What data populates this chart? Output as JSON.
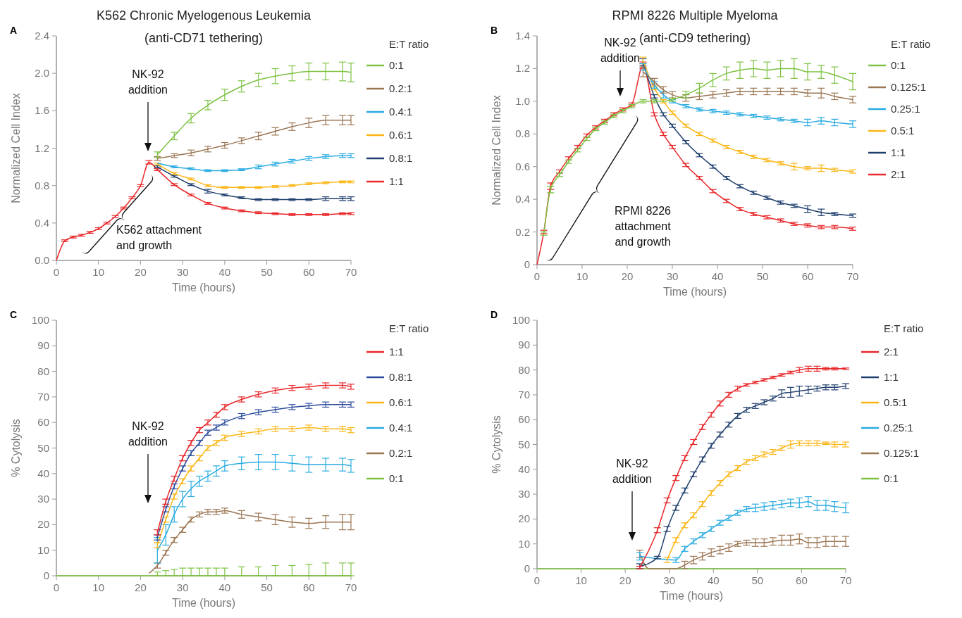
{
  "chart_data": [
    {
      "type": "line",
      "title": "K562 Chronic Myelogenous Leukemia",
      "subtitle": "(anti-CD71 tethering)",
      "xlabel": "Time (hours)",
      "ylabel": "Normalized Cell Index",
      "legend_title": "E:T ratio",
      "legend": "right",
      "line_style": "solid",
      "annotations": [
        "A",
        "NK-92\naddition",
        "K562 attachment\nand growth"
      ],
      "xlim": [
        0,
        70
      ],
      "xticks": [
        0,
        10,
        20,
        30,
        40,
        50,
        60,
        70
      ],
      "ylim": [
        0,
        2.4
      ],
      "yticks": [
        {
          "value": 0,
          "label": "0.0"
        },
        0.4,
        0.8,
        1.2,
        1.6,
        {
          "value": 2,
          "label": "2.0"
        },
        2.4
      ],
      "x": [
        0,
        2,
        4,
        6,
        8,
        10,
        12,
        14,
        16,
        18,
        20,
        22,
        24,
        28,
        32,
        36,
        40,
        44,
        48,
        52,
        56,
        60,
        64,
        68,
        70
      ],
      "series": [
        {
          "name": "0:1",
          "color": "#7dc242",
          "values": [
            null,
            null,
            null,
            null,
            null,
            null,
            null,
            null,
            null,
            null,
            null,
            null,
            1.13,
            1.33,
            1.52,
            1.66,
            1.77,
            1.86,
            1.93,
            1.97,
            2.0,
            2.02,
            2.02,
            2.02,
            2.01
          ],
          "errors": [
            null,
            null,
            null,
            null,
            null,
            null,
            null,
            null,
            null,
            null,
            null,
            null,
            0.03,
            0.04,
            0.05,
            0.05,
            0.06,
            0.06,
            0.07,
            0.08,
            0.08,
            0.09,
            0.09,
            0.1,
            0.1
          ]
        },
        {
          "name": "0.2:1",
          "color": "#9b7653",
          "values": [
            null,
            null,
            null,
            null,
            null,
            null,
            null,
            null,
            null,
            null,
            null,
            null,
            1.09,
            1.12,
            1.15,
            1.19,
            1.23,
            1.28,
            1.33,
            1.38,
            1.43,
            1.47,
            1.5,
            1.5,
            1.5
          ],
          "errors": [
            null,
            null,
            null,
            null,
            null,
            null,
            null,
            null,
            null,
            null,
            null,
            null,
            0.02,
            0.02,
            0.03,
            0.03,
            0.03,
            0.03,
            0.04,
            0.04,
            0.04,
            0.05,
            0.05,
            0.05,
            0.05
          ]
        },
        {
          "name": "0.4:1",
          "color": "#29abe2",
          "values": [
            null,
            null,
            null,
            null,
            null,
            null,
            null,
            null,
            null,
            null,
            null,
            null,
            1.04,
            1.0,
            0.98,
            0.96,
            0.96,
            0.97,
            1.0,
            1.03,
            1.06,
            1.09,
            1.11,
            1.12,
            1.12
          ],
          "errors": [
            null,
            null,
            null,
            null,
            null,
            null,
            null,
            null,
            null,
            null,
            null,
            null,
            null,
            0.01,
            0.01,
            0.01,
            0.01,
            0.01,
            0.02,
            0.02,
            0.02,
            0.02,
            0.02,
            0.02,
            0.02
          ]
        },
        {
          "name": "0.6:1",
          "color": "#fbb616",
          "values": [
            null,
            null,
            null,
            null,
            null,
            null,
            null,
            null,
            null,
            null,
            null,
            null,
            1.03,
            0.93,
            0.87,
            0.8,
            0.78,
            0.78,
            0.78,
            0.79,
            0.8,
            0.82,
            0.83,
            0.84,
            0.84
          ],
          "errors": [
            null,
            null,
            null,
            null,
            null,
            null,
            null,
            null,
            null,
            null,
            null,
            null,
            0.01,
            0.01,
            0.01,
            0.01,
            0.01,
            0.01,
            0.01,
            0.01,
            0.01,
            0.01,
            0.01,
            0.01,
            0.01
          ]
        },
        {
          "name": "0.8:1",
          "color": "#1f3f6e",
          "values": [
            null,
            null,
            null,
            null,
            null,
            null,
            null,
            null,
            null,
            null,
            null,
            null,
            1.0,
            0.9,
            0.81,
            0.74,
            0.7,
            0.67,
            0.65,
            0.65,
            0.65,
            0.65,
            0.66,
            0.66,
            0.66
          ],
          "errors": [
            null,
            null,
            null,
            null,
            null,
            null,
            null,
            null,
            null,
            null,
            null,
            null,
            0.01,
            0.01,
            0.01,
            0.02,
            0.01,
            0.01,
            0.01,
            0.01,
            0.01,
            0.01,
            0.02,
            0.02,
            0.02
          ]
        },
        {
          "name": "1:1",
          "color": "#e8282b",
          "values": [
            0,
            0.21,
            0.25,
            0.27,
            0.3,
            0.34,
            0.4,
            0.47,
            0.56,
            0.67,
            0.8,
            1.05,
            0.97,
            0.81,
            0.7,
            0.61,
            0.56,
            0.53,
            0.51,
            0.5,
            0.49,
            0.49,
            0.49,
            0.5,
            0.5
          ],
          "errors": [
            null,
            0.01,
            0.01,
            0.01,
            0.01,
            0.01,
            0.01,
            0.01,
            0.01,
            0.01,
            0.01,
            0.02,
            0.01,
            0.01,
            0.01,
            0.01,
            0.01,
            0.01,
            0.01,
            0.01,
            0.01,
            0.01,
            0.01,
            0.01,
            0.01
          ]
        }
      ]
    },
    {
      "type": "line",
      "title": "RPMI 8226 Multiple Myeloma",
      "subtitle": "(anti-CD9 tethering)",
      "xlabel": "Time (hours)",
      "ylabel": "Normalized Cell Index",
      "legend_title": "E:T ratio",
      "legend": "right",
      "line_style": "solid",
      "annotations": [
        "B",
        "NK-92\naddition",
        "RPMI 8226\nattachment\nand growth"
      ],
      "xlim": [
        0,
        70
      ],
      "xticks": [
        0,
        10,
        20,
        30,
        40,
        50,
        60,
        70
      ],
      "ylim": [
        0,
        1.4
      ],
      "yticks": [
        0,
        0.2,
        0.4,
        0.6,
        0.8,
        {
          "value": 1,
          "label": "1.0"
        },
        1.2,
        1.4
      ],
      "x": [
        0,
        1.5,
        3,
        5,
        7,
        9,
        11,
        13,
        15,
        17,
        19,
        21,
        23.5,
        26,
        28,
        30,
        33,
        36,
        39,
        42,
        45,
        48,
        51,
        54,
        57,
        60,
        63,
        66,
        70
      ],
      "series": [
        {
          "name": "0:1",
          "color": "#7dc242",
          "values": [
            null,
            0.19,
            0.46,
            0.55,
            0.63,
            0.7,
            0.77,
            0.83,
            0.87,
            0.91,
            0.94,
            0.97,
            1.0,
            1.0,
            1.0,
            1.01,
            1.04,
            1.08,
            1.13,
            1.17,
            1.19,
            1.2,
            1.19,
            1.2,
            1.2,
            1.18,
            1.18,
            1.16,
            1.12
          ],
          "errors": [
            null,
            0.01,
            0.02,
            0.01,
            0.01,
            0.01,
            0.01,
            0.01,
            0.01,
            0.01,
            0.01,
            0.01,
            0.01,
            0.01,
            null,
            0.01,
            0.02,
            0.03,
            0.04,
            0.04,
            0.05,
            0.05,
            0.05,
            0.05,
            0.06,
            0.05,
            0.04,
            0.05,
            0.05
          ]
        },
        {
          "name": "0.125:1",
          "color": "#9b7653",
          "values": [
            null,
            null,
            null,
            null,
            null,
            null,
            null,
            null,
            null,
            null,
            null,
            null,
            1.18,
            1.12,
            1.07,
            1.04,
            1.02,
            1.03,
            1.04,
            1.05,
            1.06,
            1.06,
            1.06,
            1.06,
            1.06,
            1.05,
            1.05,
            1.03,
            1.01
          ],
          "errors": [
            null,
            null,
            null,
            null,
            null,
            null,
            null,
            null,
            null,
            null,
            null,
            null,
            0.03,
            0.02,
            0.02,
            0.02,
            0.02,
            0.02,
            0.02,
            0.02,
            0.02,
            0.02,
            0.02,
            0.02,
            0.02,
            0.02,
            0.03,
            0.02,
            0.02
          ]
        },
        {
          "name": "0.25:1",
          "color": "#29abe2",
          "values": [
            null,
            null,
            null,
            null,
            null,
            null,
            null,
            null,
            null,
            null,
            null,
            null,
            1.21,
            1.1,
            1.04,
            1.0,
            0.97,
            0.95,
            0.94,
            0.93,
            0.92,
            0.91,
            0.9,
            0.89,
            0.88,
            0.87,
            0.88,
            0.87,
            0.86
          ],
          "errors": [
            null,
            null,
            null,
            null,
            null,
            null,
            null,
            null,
            null,
            null,
            null,
            null,
            0.02,
            0.02,
            0.02,
            0.01,
            0.01,
            0.01,
            0.01,
            0.01,
            0.01,
            0.01,
            0.01,
            0.01,
            0.01,
            0.02,
            0.02,
            0.02,
            0.02
          ]
        },
        {
          "name": "0.5:1",
          "color": "#fbb616",
          "values": [
            null,
            null,
            null,
            null,
            null,
            null,
            null,
            null,
            null,
            null,
            null,
            null,
            1.25,
            1.08,
            1.0,
            0.93,
            0.85,
            0.8,
            0.76,
            0.72,
            0.69,
            0.66,
            0.64,
            0.62,
            0.6,
            0.59,
            0.59,
            0.58,
            0.57
          ],
          "errors": [
            null,
            null,
            null,
            null,
            null,
            null,
            null,
            null,
            null,
            null,
            null,
            null,
            0.02,
            0.01,
            0.01,
            0.01,
            0.01,
            0.01,
            0.01,
            0.01,
            0.01,
            0.01,
            0.01,
            0.01,
            0.02,
            0.01,
            0.02,
            0.01,
            0.01
          ]
        },
        {
          "name": "1:1",
          "color": "#1f3f6e",
          "values": [
            null,
            null,
            null,
            null,
            null,
            null,
            null,
            null,
            null,
            null,
            null,
            null,
            1.24,
            1.03,
            0.92,
            0.85,
            0.75,
            0.67,
            0.6,
            0.53,
            0.48,
            0.44,
            0.41,
            0.38,
            0.36,
            0.34,
            0.32,
            0.31,
            0.3
          ],
          "errors": [
            null,
            null,
            null,
            null,
            null,
            null,
            null,
            null,
            null,
            null,
            null,
            null,
            0.02,
            0.01,
            0.01,
            0.01,
            0.01,
            0.01,
            0.01,
            0.01,
            0.01,
            0.01,
            0.01,
            0.01,
            0.01,
            0.02,
            0.02,
            0.01,
            0.01
          ]
        },
        {
          "name": "2:1",
          "color": "#e8282b",
          "values": [
            0,
            0.2,
            0.48,
            0.57,
            0.65,
            0.72,
            0.79,
            0.84,
            0.88,
            0.92,
            0.95,
            0.98,
            1.22,
            0.92,
            0.8,
            0.72,
            0.61,
            0.53,
            0.45,
            0.39,
            0.34,
            0.31,
            0.29,
            0.27,
            0.25,
            0.24,
            0.23,
            0.23,
            0.22
          ],
          "errors": [
            null,
            0.01,
            0.02,
            0.01,
            0.01,
            0.01,
            0.01,
            0.01,
            0.01,
            0.01,
            0.01,
            0.01,
            0.02,
            0.01,
            0.01,
            0.01,
            0.01,
            0.01,
            0.01,
            0.01,
            0.01,
            0.01,
            0.01,
            0.01,
            0.01,
            0.01,
            0.01,
            0.01,
            0.01
          ]
        }
      ]
    },
    {
      "type": "line",
      "xlabel": "Time (hours)",
      "ylabel": "% Cytolysis",
      "legend_title": "E:T ratio",
      "legend": "right",
      "line_style": "solid",
      "annotations": [
        "C",
        "NK-92\naddition"
      ],
      "xlim": [
        0,
        70
      ],
      "xticks": [
        0,
        10,
        20,
        30,
        40,
        50,
        60,
        70
      ],
      "ylim": [
        0,
        100
      ],
      "yticks": [
        0,
        10,
        20,
        30,
        40,
        50,
        60,
        70,
        80,
        90,
        100
      ],
      "x": [
        0,
        10,
        20,
        22,
        24,
        26,
        28,
        30,
        32,
        34,
        36,
        38,
        40,
        44,
        48,
        52,
        56,
        60,
        64,
        68,
        70
      ],
      "series": [
        {
          "name": "1:1",
          "color": "#e8282b",
          "values": [
            null,
            null,
            null,
            null,
            17,
            29,
            38,
            46,
            52,
            57,
            60,
            63,
            66,
            69,
            71,
            72.5,
            73.5,
            74,
            74.5,
            74.5,
            74
          ],
          "errors": [
            null,
            null,
            null,
            null,
            1,
            1,
            1,
            1,
            1,
            1,
            1,
            1,
            1,
            1,
            1,
            1,
            1,
            1,
            1,
            1,
            1
          ]
        },
        {
          "name": "0.8:1",
          "color": "#2b4b9b",
          "values": [
            null,
            null,
            null,
            null,
            15,
            26,
            35,
            42,
            48,
            52,
            56,
            58,
            60,
            62.5,
            64,
            65,
            66,
            66.5,
            67,
            67,
            67
          ],
          "errors": [
            null,
            null,
            null,
            null,
            1,
            1,
            1,
            1,
            1,
            1,
            1,
            1,
            1,
            1,
            1,
            1,
            1,
            1,
            1,
            1,
            1
          ]
        },
        {
          "name": "0.6:1",
          "color": "#fbb616",
          "values": [
            null,
            null,
            null,
            null,
            12,
            22,
            31,
            37,
            42,
            46,
            50,
            52,
            54,
            55.5,
            56.5,
            57.5,
            57.5,
            58,
            57.5,
            57.5,
            57
          ],
          "errors": [
            null,
            null,
            null,
            null,
            1,
            1,
            1,
            1,
            1,
            1,
            1,
            1,
            1,
            1,
            1,
            1,
            1,
            1,
            1,
            1,
            1
          ]
        },
        {
          "name": "0.4:1",
          "color": "#29abe2",
          "values": [
            null,
            null,
            null,
            null,
            10,
            16,
            24,
            30,
            34,
            37,
            39,
            41,
            43,
            44,
            44.5,
            44.5,
            44,
            43.5,
            43.5,
            43.5,
            43
          ],
          "errors": [
            null,
            null,
            null,
            null,
            5,
            4,
            3,
            3,
            3,
            2,
            2,
            2,
            2,
            2.5,
            3,
            3,
            3,
            3,
            2.5,
            2.5,
            2.5
          ]
        },
        {
          "name": "0.2:1",
          "color": "#9b7653",
          "values": [
            null,
            null,
            null,
            1,
            4,
            9,
            14,
            18,
            22,
            24,
            25,
            25,
            25.5,
            24,
            23,
            22,
            21,
            20.5,
            21,
            21,
            21
          ],
          "errors": [
            null,
            null,
            null,
            null,
            1,
            1,
            1,
            1,
            1,
            1,
            1,
            1,
            1,
            1.5,
            1.5,
            2,
            2,
            2,
            2.5,
            3,
            3
          ]
        },
        {
          "name": "0:1",
          "color": "#7dc242",
          "values": [
            0,
            0,
            0,
            0,
            0,
            0,
            0,
            0,
            0,
            0,
            0,
            0,
            0,
            0,
            0,
            0,
            0,
            0,
            0,
            0,
            0
          ],
          "errors": [
            null,
            null,
            null,
            null,
            [
              0,
              1.5
            ],
            [
              0,
              2
            ],
            [
              0,
              2.5
            ],
            [
              0,
              3
            ],
            [
              0,
              3
            ],
            [
              0,
              3
            ],
            [
              0,
              3
            ],
            [
              0,
              3
            ],
            [
              0,
              3
            ],
            [
              0,
              3.5
            ],
            [
              0,
              3.5
            ],
            [
              0,
              4
            ],
            [
              0,
              4
            ],
            [
              0,
              4.5
            ],
            [
              0,
              5
            ],
            [
              0,
              5
            ],
            [
              0,
              5
            ]
          ]
        }
      ]
    },
    {
      "type": "line",
      "xlabel": "Time (hours)",
      "ylabel": "% Cytolysis",
      "legend_title": "E:T ratio",
      "legend": "right",
      "line_style": "solid",
      "annotations": [
        "D",
        "NK-92\naddition"
      ],
      "xlim": [
        0,
        70
      ],
      "xticks": [
        0,
        10,
        20,
        30,
        40,
        50,
        60,
        70
      ],
      "ylim": [
        0,
        100
      ],
      "yticks": [
        0,
        10,
        20,
        30,
        40,
        50,
        60,
        70,
        80,
        90,
        100
      ],
      "x": [
        0,
        10,
        20,
        23.3,
        25.4,
        27.3,
        29.5,
        31.5,
        33.5,
        35.5,
        37.5,
        39.5,
        41.5,
        43.5,
        45.5,
        47.5,
        49.5,
        51.5,
        53.5,
        55.5,
        57.5,
        59.5,
        61.5,
        63.5,
        65.5,
        67.5,
        70
      ],
      "series": [
        {
          "name": "2:1",
          "color": "#e8282b",
          "values": [
            null,
            null,
            null,
            0.5,
            null,
            15.5,
            27.5,
            36.5,
            44.5,
            51,
            57,
            62,
            66.5,
            70,
            72.5,
            74,
            75,
            76,
            77,
            78,
            79,
            80,
            80.5,
            80.5,
            80.5,
            80.5,
            80.5
          ],
          "errors": [
            null,
            null,
            null,
            0.5,
            null,
            1,
            1,
            1,
            1,
            1,
            1,
            1,
            1,
            1,
            1,
            0.5,
            0.5,
            0.5,
            0.5,
            0.5,
            0.5,
            1,
            1,
            1,
            0.5,
            0.5,
            0.3
          ]
        },
        {
          "name": "1:1",
          "color": "#1f3f6e",
          "values": [
            null,
            null,
            null,
            1,
            null,
            4.5,
            16,
            24.5,
            31.5,
            38,
            44,
            49.5,
            54,
            58,
            61.5,
            64,
            65.5,
            67,
            68.5,
            70.5,
            71,
            71.5,
            72,
            72.5,
            73,
            73,
            73.5
          ],
          "errors": [
            null,
            null,
            null,
            1,
            null,
            0.5,
            1,
            1,
            1,
            1,
            1,
            1,
            1,
            1,
            1,
            1,
            1,
            1,
            1,
            1.5,
            2,
            2,
            1.5,
            1,
            1,
            1,
            1
          ]
        },
        {
          "name": "0.5:1",
          "color": "#fbb616",
          "values": [
            null,
            null,
            null,
            null,
            null,
            null,
            3.5,
            11.5,
            17.5,
            21.5,
            26,
            30.5,
            34.5,
            38,
            40.5,
            43,
            44.5,
            46,
            47,
            48.5,
            50,
            50.5,
            50.5,
            50.5,
            50.5,
            50,
            50
          ],
          "errors": [
            null,
            null,
            null,
            null,
            null,
            null,
            1,
            1,
            1,
            1,
            1,
            1,
            1,
            1,
            1,
            1,
            1,
            1,
            1,
            1,
            1.5,
            1,
            1,
            1,
            0.5,
            1,
            1
          ]
        },
        {
          "name": "0.25:1",
          "color": "#29abe2",
          "values": [
            null,
            null,
            null,
            5,
            null,
            null,
            null,
            3.5,
            8,
            11,
            13.5,
            16,
            18.5,
            20.5,
            22.5,
            24,
            24.5,
            25,
            25.5,
            26,
            26.5,
            26.5,
            27,
            25.5,
            25.5,
            25,
            24.5
          ],
          "errors": [
            null,
            null,
            null,
            1.5,
            null,
            null,
            null,
            1,
            1,
            1,
            1,
            1,
            1,
            1,
            1,
            1,
            1.5,
            1.5,
            1.5,
            1.5,
            1.5,
            2,
            2,
            2,
            2,
            2,
            2
          ]
        },
        {
          "name": "0.125:1",
          "color": "#9b7653",
          "values": [
            null,
            null,
            null,
            6,
            0,
            0,
            0,
            0,
            1.5,
            3.5,
            5,
            6.5,
            7.5,
            8.5,
            10,
            10.5,
            10.5,
            10.5,
            11,
            11.5,
            11.5,
            12,
            10.5,
            10.5,
            11,
            11,
            11
          ],
          "errors": [
            null,
            null,
            null,
            1.5,
            null,
            null,
            null,
            null,
            1.5,
            1.5,
            1.5,
            1.5,
            1.5,
            1.5,
            1,
            1,
            1.5,
            1.5,
            1.5,
            2,
            2,
            2,
            2,
            2,
            2,
            2,
            2
          ]
        },
        {
          "name": "0:1",
          "color": "#7dc242",
          "values": [
            0,
            0,
            0,
            null,
            null,
            null,
            null,
            null,
            0,
            0,
            0,
            0,
            0,
            0,
            0,
            0,
            0,
            0,
            0,
            0,
            0,
            0,
            0,
            0,
            0,
            0,
            0
          ]
        }
      ]
    }
  ]
}
